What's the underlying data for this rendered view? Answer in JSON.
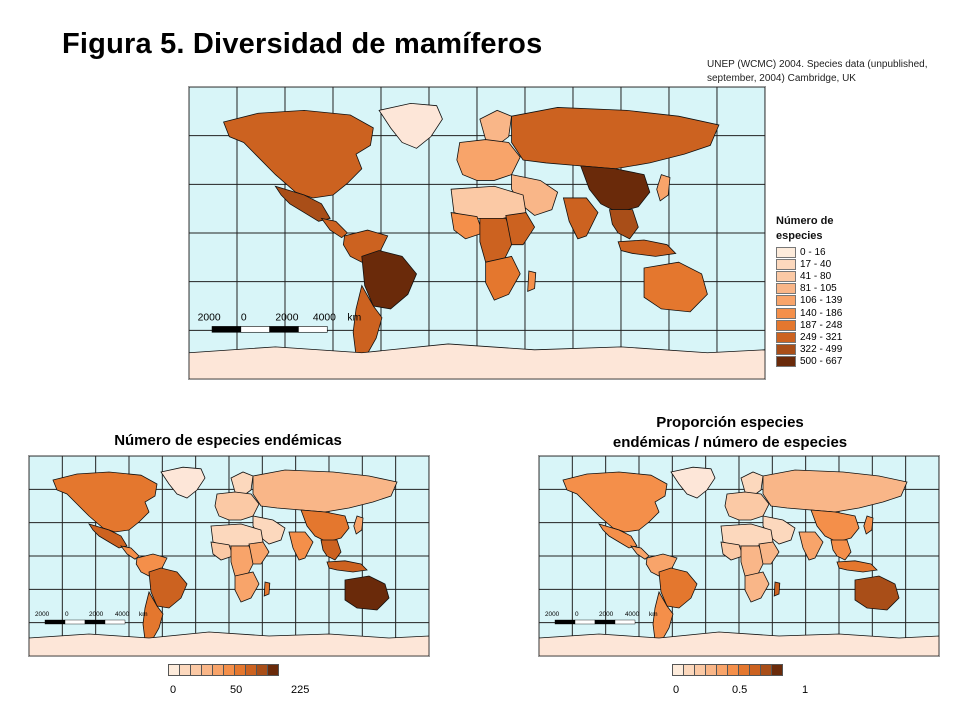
{
  "title": "Figura 5.  Diversidad de mamíferos",
  "source": "UNEP (WCMC) 2004. Species data (unpublished, september, 2004) Cambridge, UK",
  "colors": {
    "ocean": "#d8f5f8",
    "polar_land": "#fde6d8",
    "class": [
      "#fdebdb",
      "#fcd8bd",
      "#fbc9a5",
      "#f9b688",
      "#f8a46a",
      "#f48f4a",
      "#e4772e",
      "#cc6220",
      "#a94e18",
      "#6a2a0a"
    ]
  },
  "main_map": {
    "legend_title": "Número de especies",
    "legend": [
      {
        "label": "0 - 16",
        "color": "#fdebdb"
      },
      {
        "label": "17 - 40",
        "color": "#fcd8bd"
      },
      {
        "label": "41 - 80",
        "color": "#fbc9a5"
      },
      {
        "label": "81 - 105",
        "color": "#f9b688"
      },
      {
        "label": "106 - 139",
        "color": "#f8a46a"
      },
      {
        "label": "140 - 186",
        "color": "#f48f4a"
      },
      {
        "label": "187 - 248",
        "color": "#e4772e"
      },
      {
        "label": "249 - 321",
        "color": "#cc6220"
      },
      {
        "label": "322 - 499",
        "color": "#a94e18"
      },
      {
        "label": "500 - 667",
        "color": "#6a2a0a"
      }
    ],
    "scale_labels": [
      "2000",
      "0",
      "2000",
      "4000",
      "km"
    ]
  },
  "map_a": {
    "title": "Número de especies endémicas",
    "ramp_ticks": [
      "0",
      "50",
      "225"
    ],
    "scale_labels": [
      "2000",
      "0",
      "2000",
      "4000",
      "km"
    ]
  },
  "map_b": {
    "title_line1": "Proporción especies",
    "title_line2": "endémicas / número de especies",
    "ramp_ticks": [
      "0",
      "0.5",
      "1"
    ],
    "scale_labels": [
      "2000",
      "0",
      "2000",
      "4000",
      "km"
    ]
  },
  "regions": {
    "main": {
      "north_america": 8,
      "mexico": 9,
      "central_america": 8,
      "south_america_north": 8,
      "brazil": 10,
      "south_america_south": 8,
      "greenland": 1,
      "europe": 5,
      "scandinavia": 4,
      "russia": 8,
      "china": 10,
      "india": 8,
      "southeast_asia": 9,
      "middle_east": 4,
      "north_africa": 3,
      "west_africa": 6,
      "central_africa": 8,
      "east_africa": 8,
      "southern_africa": 7,
      "madagascar": 6,
      "australia": 7,
      "indonesia": 8,
      "japan": 5,
      "antarctica": 1
    },
    "a": {
      "north_america": 7,
      "mexico": 8,
      "central_america": 6,
      "south_america_north": 6,
      "brazil": 8,
      "south_america_south": 7,
      "greenland": 1,
      "europe": 3,
      "scandinavia": 2,
      "russia": 4,
      "china": 7,
      "india": 6,
      "southeast_asia": 8,
      "middle_east": 2,
      "north_africa": 2,
      "west_africa": 3,
      "central_africa": 5,
      "east_africa": 5,
      "southern_africa": 5,
      "madagascar": 7,
      "australia": 10,
      "indonesia": 8,
      "japan": 5,
      "antarctica": 1
    },
    "b": {
      "north_america": 6,
      "mexico": 6,
      "central_america": 5,
      "south_america_north": 5,
      "brazil": 7,
      "south_america_south": 6,
      "greenland": 1,
      "europe": 3,
      "scandinavia": 2,
      "russia": 4,
      "china": 6,
      "india": 5,
      "southeast_asia": 6,
      "middle_east": 2,
      "north_africa": 2,
      "west_africa": 3,
      "central_africa": 4,
      "east_africa": 4,
      "southern_africa": 4,
      "madagascar": 8,
      "australia": 9,
      "indonesia": 7,
      "japan": 6,
      "antarctica": 1
    }
  }
}
